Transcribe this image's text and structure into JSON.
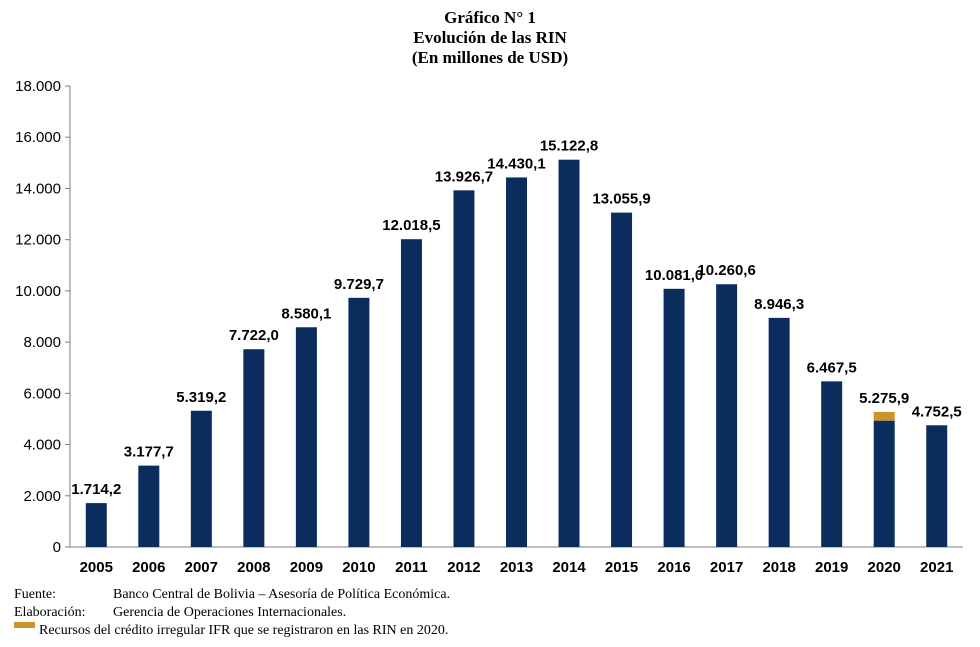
{
  "header": {
    "line1": "Gráfico N° 1",
    "line2": "Evolución de las RIN",
    "line3": "(En millones de USD)"
  },
  "chart_data": {
    "type": "bar",
    "categories": [
      "2005",
      "2006",
      "2007",
      "2008",
      "2009",
      "2010",
      "2011",
      "2012",
      "2013",
      "2014",
      "2015",
      "2016",
      "2017",
      "2018",
      "2019",
      "2020",
      "2021"
    ],
    "values": [
      1714.2,
      3177.7,
      5319.2,
      7722.0,
      8580.1,
      9729.7,
      12018.5,
      13926.7,
      14430.1,
      15122.8,
      13055.9,
      10081.0,
      10260.6,
      8946.3,
      6467.5,
      5275.9,
      4752.5
    ],
    "data_labels": [
      "1.714,2",
      "3.177,7",
      "5.319,2",
      "7.722,0",
      "8.580,1",
      "9.729,7",
      "12.018,5",
      "13.926,7",
      "14.430,1",
      "15.122,8",
      "13.055,9",
      "10.081,0",
      "10.260,6",
      "8.946,3",
      "6.467,5",
      "5.275,9",
      "4.752,5"
    ],
    "ifr_portion": {
      "category": "2020",
      "value": 346.0
    },
    "ylim": [
      0,
      18000
    ],
    "yticks": [
      0,
      2000,
      4000,
      6000,
      8000,
      10000,
      12000,
      14000,
      16000,
      18000
    ],
    "ytick_labels": [
      "0",
      "2.000",
      "4.000",
      "6.000",
      "8.000",
      "10.000",
      "12.000",
      "14.000",
      "16.000",
      "18.000"
    ],
    "grid": false,
    "colors": {
      "bar": "#0b2d5e",
      "ifr": "#c9952a",
      "axis": "#808080"
    }
  },
  "footer": {
    "source_key": "Fuente:",
    "source_value": "Banco Central de Bolivia – Asesoría de Política Económica.",
    "elab_key": "Elaboración:",
    "elab_value": "Gerencia de Operaciones Internacionales.",
    "legend_text": "Recursos del crédito irregular IFR que se registraron en las RIN en 2020."
  }
}
